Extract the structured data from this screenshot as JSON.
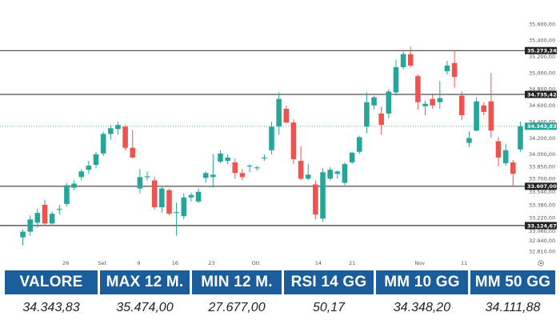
{
  "chart_data": {
    "type": "candlestick",
    "y_ticks": [
      "35.600,00",
      "35.400,00",
      "35.200,00",
      "35.000,00",
      "34.800,00",
      "34.600,00",
      "34.400,00",
      "34.200,00",
      "34.000,00",
      "33.850,00",
      "33.700,00",
      "33.540,00",
      "33.380,00",
      "33.220,00",
      "33.060,00",
      "32.940,00",
      "32.810,00"
    ],
    "x_ticks": [
      "26",
      "Set",
      "9",
      "16",
      "23",
      "Ott",
      "14",
      "21",
      "Nov",
      "11"
    ],
    "ylim": [
      32810,
      35600
    ],
    "grid": false,
    "levels": [
      {
        "value": 35273.24,
        "label": "35.273,24"
      },
      {
        "value": 34735.42,
        "label": "34.735,42"
      },
      {
        "value": 33607.0,
        "label": "33.607,00"
      },
      {
        "value": 33124.67,
        "label": "33.124,67"
      }
    ],
    "last_price": {
      "value": 34343.83,
      "label": "34.343,83",
      "color": "#26a69a"
    },
    "colors": {
      "up": "#26a69a",
      "down": "#ef5350",
      "level_line": "#222222"
    },
    "candles": [
      {
        "o": 32980,
        "h": 33080,
        "l": 32880,
        "c": 33050
      },
      {
        "o": 33050,
        "h": 33250,
        "l": 33000,
        "c": 33200
      },
      {
        "o": 33160,
        "h": 33330,
        "l": 33100,
        "c": 33280
      },
      {
        "o": 33380,
        "h": 33440,
        "l": 33120,
        "c": 33150
      },
      {
        "o": 33150,
        "h": 33300,
        "l": 33120,
        "c": 33270
      },
      {
        "o": 33330,
        "h": 33380,
        "l": 33260,
        "c": 33330
      },
      {
        "o": 33390,
        "h": 33650,
        "l": 33360,
        "c": 33620
      },
      {
        "o": 33590,
        "h": 33680,
        "l": 33560,
        "c": 33640
      },
      {
        "o": 33720,
        "h": 33820,
        "l": 33680,
        "c": 33790
      },
      {
        "o": 33810,
        "h": 33920,
        "l": 33760,
        "c": 33860
      },
      {
        "o": 33870,
        "h": 34030,
        "l": 33830,
        "c": 34000
      },
      {
        "o": 34010,
        "h": 34280,
        "l": 33980,
        "c": 34250
      },
      {
        "o": 34250,
        "h": 34360,
        "l": 34180,
        "c": 34320
      },
      {
        "o": 34310,
        "h": 34400,
        "l": 34240,
        "c": 34360
      },
      {
        "o": 34340,
        "h": 34360,
        "l": 34050,
        "c": 34080
      },
      {
        "o": 34080,
        "h": 34300,
        "l": 33950,
        "c": 33960
      },
      {
        "o": 33580,
        "h": 33820,
        "l": 33520,
        "c": 33720
      },
      {
        "o": 33720,
        "h": 33790,
        "l": 33680,
        "c": 33730
      },
      {
        "o": 33680,
        "h": 33720,
        "l": 33320,
        "c": 33350
      },
      {
        "o": 33350,
        "h": 33610,
        "l": 33280,
        "c": 33580
      },
      {
        "o": 33560,
        "h": 33580,
        "l": 33250,
        "c": 33270
      },
      {
        "o": 33280,
        "h": 33410,
        "l": 33000,
        "c": 33290
      },
      {
        "o": 33240,
        "h": 33520,
        "l": 33200,
        "c": 33470
      },
      {
        "o": 33470,
        "h": 33530,
        "l": 33420,
        "c": 33500
      },
      {
        "o": 33420,
        "h": 33580,
        "l": 33400,
        "c": 33540
      },
      {
        "o": 33710,
        "h": 33790,
        "l": 33650,
        "c": 33770
      },
      {
        "o": 33720,
        "h": 34000,
        "l": 33590,
        "c": 33750
      },
      {
        "o": 33910,
        "h": 34050,
        "l": 33890,
        "c": 34010
      },
      {
        "o": 33920,
        "h": 34000,
        "l": 33880,
        "c": 33960
      },
      {
        "o": 33900,
        "h": 33950,
        "l": 33700,
        "c": 33770
      },
      {
        "o": 33770,
        "h": 33820,
        "l": 33680,
        "c": 33720
      },
      {
        "o": 33850,
        "h": 33880,
        "l": 33780,
        "c": 33860
      },
      {
        "o": 33830,
        "h": 33860,
        "l": 33800,
        "c": 33840
      },
      {
        "o": 33960,
        "h": 34000,
        "l": 33920,
        "c": 33960
      },
      {
        "o": 34050,
        "h": 34400,
        "l": 34000,
        "c": 34340
      },
      {
        "o": 34340,
        "h": 34760,
        "l": 34240,
        "c": 34680
      },
      {
        "o": 34560,
        "h": 34600,
        "l": 34380,
        "c": 34390
      },
      {
        "o": 34390,
        "h": 34430,
        "l": 33880,
        "c": 33940
      },
      {
        "o": 33920,
        "h": 34100,
        "l": 33680,
        "c": 33700
      },
      {
        "o": 33700,
        "h": 33880,
        "l": 33680,
        "c": 33750
      },
      {
        "o": 33630,
        "h": 33680,
        "l": 33200,
        "c": 33260
      },
      {
        "o": 33210,
        "h": 33830,
        "l": 33170,
        "c": 33780
      },
      {
        "o": 33700,
        "h": 33840,
        "l": 33680,
        "c": 33810
      },
      {
        "o": 33760,
        "h": 33800,
        "l": 33700,
        "c": 33790
      },
      {
        "o": 33650,
        "h": 33900,
        "l": 33620,
        "c": 33880
      },
      {
        "o": 33900,
        "h": 34030,
        "l": 33880,
        "c": 34020
      },
      {
        "o": 34030,
        "h": 34230,
        "l": 34000,
        "c": 34210
      },
      {
        "o": 34340,
        "h": 34760,
        "l": 34260,
        "c": 34640
      },
      {
        "o": 34600,
        "h": 34720,
        "l": 34550,
        "c": 34700
      },
      {
        "o": 34500,
        "h": 34580,
        "l": 34240,
        "c": 34360
      },
      {
        "o": 34500,
        "h": 34800,
        "l": 34440,
        "c": 34770
      },
      {
        "o": 34760,
        "h": 35160,
        "l": 34720,
        "c": 35070
      },
      {
        "o": 35070,
        "h": 35260,
        "l": 35040,
        "c": 35230
      },
      {
        "o": 35230,
        "h": 35320,
        "l": 35070,
        "c": 35090
      },
      {
        "o": 34960,
        "h": 34980,
        "l": 34550,
        "c": 34640
      },
      {
        "o": 34590,
        "h": 34660,
        "l": 34480,
        "c": 34620
      },
      {
        "o": 34680,
        "h": 34730,
        "l": 34560,
        "c": 34600
      },
      {
        "o": 34640,
        "h": 34900,
        "l": 34560,
        "c": 34690
      },
      {
        "o": 35020,
        "h": 35150,
        "l": 34980,
        "c": 35090
      },
      {
        "o": 35120,
        "h": 35280,
        "l": 34820,
        "c": 34950
      },
      {
        "o": 34720,
        "h": 34770,
        "l": 34420,
        "c": 34480
      },
      {
        "o": 34140,
        "h": 34280,
        "l": 34090,
        "c": 34200
      },
      {
        "o": 34290,
        "h": 34700,
        "l": 34280,
        "c": 34650
      },
      {
        "o": 34600,
        "h": 34640,
        "l": 34480,
        "c": 34520
      },
      {
        "o": 34650,
        "h": 35000,
        "l": 34200,
        "c": 34290
      },
      {
        "o": 34160,
        "h": 34210,
        "l": 33850,
        "c": 33960
      },
      {
        "o": 33890,
        "h": 34130,
        "l": 33860,
        "c": 34050
      },
      {
        "o": 33900,
        "h": 33930,
        "l": 33600,
        "c": 33760
      },
      {
        "o": 34060,
        "h": 34400,
        "l": 34030,
        "c": 34343.83
      }
    ]
  },
  "stats": {
    "headers": [
      "VALORE",
      "MAX 12 M.",
      "MIN 12 M.",
      "RSI 14 GG",
      "MM 10 GG",
      "MM 50 GG"
    ],
    "values": [
      "34.343,83",
      "35.474,00",
      "27.677,00",
      "50,17",
      "34.348,20",
      "34.111,88"
    ],
    "header_color": "#1b5c9a"
  },
  "icons": {
    "settings": "gear-icon"
  }
}
